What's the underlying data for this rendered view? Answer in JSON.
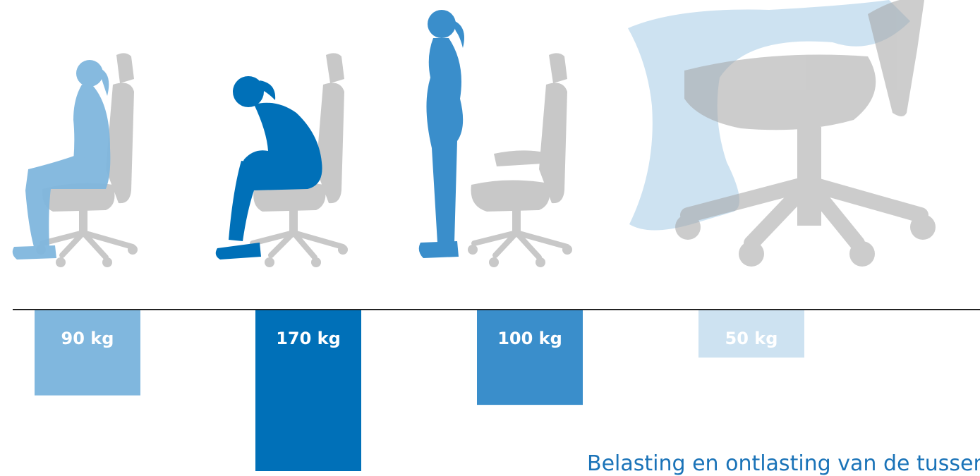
{
  "chart_data": {
    "type": "bar",
    "orientation": "downward",
    "categories": [
      "90 kg",
      "170 kg",
      "100 kg",
      "50 kg"
    ],
    "values": [
      90,
      170,
      100,
      50
    ],
    "unit": "kg",
    "colors": [
      "#80b7de",
      "#0070b8",
      "#3a8ecb",
      "#cde2f1"
    ],
    "title": "",
    "xlabel": "",
    "ylabel": ""
  },
  "caption": "Belasting en ontlasting van de tussen",
  "colors": {
    "chair": "#c8c8c8",
    "baseline": "#222222",
    "caption": "#1a73b8"
  },
  "figures": [
    {
      "name": "sitting-upright-figure",
      "icon": "woman-sitting-icon",
      "color": "#80b7de"
    },
    {
      "name": "sitting-bent-figure",
      "icon": "woman-bending-icon",
      "color": "#0070b8"
    },
    {
      "name": "standing-figure",
      "icon": "woman-standing-icon",
      "color": "#3a8ecb"
    },
    {
      "name": "reclining-figure",
      "icon": "woman-reclining-icon",
      "color": "#cde2f1"
    }
  ]
}
